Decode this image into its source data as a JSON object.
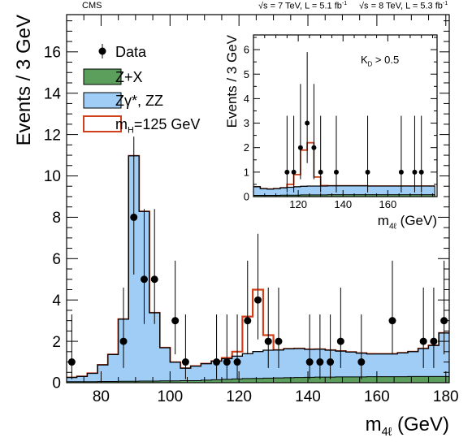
{
  "header": {
    "experiment": "CMS",
    "run1": {
      "energy": "√s = 7 TeV, L = 5.1 fb",
      "exp": "-1"
    },
    "run2": {
      "energy": "√s = 8 TeV, L = 5.3 fb",
      "exp": "-1"
    }
  },
  "colors": {
    "zx_fill": "#5c9e5c",
    "zz_fill": "#9fcdf5",
    "higgs_line": "#d0401b",
    "data": "#000000"
  },
  "chart_data": [
    {
      "type": "bar",
      "histogram": "stacked-step",
      "xlabel_main": "m",
      "xlabel_sub": "4ℓ",
      "xlabel_unit": " (GeV)",
      "ylabel": "Events / 3 GeV",
      "xlim": [
        70,
        181
      ],
      "ylim": [
        0,
        17.8
      ],
      "xticks": [
        80,
        100,
        120,
        140,
        160,
        180
      ],
      "yticks": [
        0,
        2,
        4,
        6,
        8,
        10,
        12,
        14,
        16
      ],
      "bin_edges": [
        70,
        73,
        76,
        79,
        82,
        85,
        88,
        91,
        94,
        97,
        100,
        103,
        106,
        109,
        112,
        115,
        118,
        121,
        124,
        127,
        130,
        133,
        136,
        139,
        142,
        145,
        148,
        151,
        154,
        157,
        160,
        163,
        166,
        169,
        172,
        175,
        178,
        181
      ],
      "series": [
        {
          "name": "Z+X",
          "kind": "fill",
          "values": [
            0.05,
            0.05,
            0.05,
            0.06,
            0.06,
            0.07,
            0.07,
            0.08,
            0.08,
            0.09,
            0.09,
            0.1,
            0.1,
            0.12,
            0.14,
            0.16,
            0.18,
            0.2,
            0.21,
            0.22,
            0.23,
            0.24,
            0.25,
            0.26,
            0.27,
            0.27,
            0.28,
            0.28,
            0.28,
            0.29,
            0.29,
            0.29,
            0.29,
            0.3,
            0.3,
            0.3,
            0.3
          ]
        },
        {
          "name": "Zγ*, ZZ",
          "kind": "fill",
          "values": [
            0.2,
            0.25,
            0.4,
            0.8,
            1.3,
            3.0,
            10.9,
            8.2,
            3.3,
            1.6,
            0.9,
            0.6,
            0.7,
            0.8,
            0.9,
            1.0,
            1.1,
            1.2,
            1.3,
            1.35,
            1.35,
            1.4,
            1.4,
            1.35,
            1.35,
            1.3,
            1.25,
            1.2,
            1.15,
            1.1,
            1.1,
            1.1,
            1.15,
            1.2,
            1.35,
            1.5,
            2.1
          ]
        },
        {
          "name": "mH=125 GeV",
          "kind": "line",
          "label_main": "m",
          "label_sub": "H",
          "label_rest": "=125 GeV",
          "values": [
            0.25,
            0.3,
            0.45,
            0.86,
            1.36,
            3.07,
            10.97,
            8.28,
            3.38,
            1.69,
            0.99,
            0.7,
            0.8,
            0.92,
            1.04,
            1.16,
            1.28,
            1.4,
            1.51,
            1.57,
            1.58,
            1.64,
            1.65,
            1.61,
            1.62,
            1.57,
            1.53,
            1.48,
            1.43,
            1.39,
            1.39,
            1.39,
            1.44,
            1.5,
            1.65,
            1.8,
            2.4
          ],
          "overrides": {
            "115": 1.2,
            "118": 1.5,
            "121": 3.2,
            "124": 4.5,
            "127": 2.3
          }
        },
        {
          "name": "Data",
          "kind": "points",
          "x": [
            71.5,
            86.5,
            89.5,
            92.5,
            95.5,
            101.5,
            104.5,
            113.5,
            116.5,
            119.5,
            122.5,
            125.5,
            128.5,
            131.5,
            140.5,
            143.5,
            146.5,
            149.5,
            155.5,
            164.5,
            173.5,
            176.5,
            179.5
          ],
          "y": [
            1,
            2,
            8,
            5,
            5,
            3,
            1,
            1,
            1,
            1,
            3,
            4,
            2,
            2,
            1,
            1,
            1,
            2,
            1,
            3,
            2,
            2,
            3
          ],
          "yerr_up": [
            2.3,
            2.6,
            3.9,
            3.4,
            3.4,
            2.9,
            2.3,
            2.3,
            2.3,
            2.3,
            2.9,
            3.2,
            2.6,
            2.6,
            2.3,
            2.3,
            2.3,
            2.6,
            2.3,
            2.9,
            2.6,
            2.6,
            2.9
          ],
          "yerr_down": [
            0.83,
            1.29,
            2.77,
            2.16,
            2.16,
            1.63,
            0.83,
            0.83,
            0.83,
            0.83,
            1.63,
            1.91,
            1.29,
            1.29,
            0.83,
            0.83,
            0.83,
            1.29,
            0.83,
            1.63,
            1.29,
            1.29,
            1.63
          ]
        }
      ],
      "legend": "top-left"
    },
    {
      "type": "bar",
      "histogram": "stacked-step",
      "annotation": "K",
      "annotation_sub": "D",
      "annotation_rest": " > 0.5",
      "xlabel_main": "m",
      "xlabel_sub": "4ℓ",
      "xlabel_unit": " (GeV)",
      "ylabel": "Events / 3 GeV",
      "xlim": [
        100,
        182
      ],
      "ylim": [
        0,
        6.6
      ],
      "xticks": [
        120,
        140,
        160
      ],
      "yticks": [
        0,
        1,
        2,
        3,
        4,
        5,
        6
      ],
      "bin_edges": [
        100,
        103,
        106,
        109,
        112,
        115,
        118,
        121,
        124,
        127,
        130,
        133,
        136,
        139,
        142,
        145,
        148,
        151,
        154,
        157,
        160,
        163,
        166,
        169,
        172,
        175,
        178,
        181
      ],
      "series": [
        {
          "name": "Z+X",
          "kind": "fill",
          "values": [
            0.05,
            0.05,
            0.05,
            0.05,
            0.06,
            0.06,
            0.06,
            0.07,
            0.07,
            0.07,
            0.07,
            0.08,
            0.08,
            0.08,
            0.08,
            0.08,
            0.08,
            0.08,
            0.08,
            0.08,
            0.08,
            0.08,
            0.08,
            0.08,
            0.08,
            0.08,
            0.08
          ]
        },
        {
          "name": "Zγ*, ZZ",
          "kind": "fill",
          "values": [
            0.35,
            0.28,
            0.26,
            0.28,
            0.3,
            0.32,
            0.34,
            0.35,
            0.36,
            0.36,
            0.36,
            0.36,
            0.36,
            0.36,
            0.36,
            0.36,
            0.36,
            0.35,
            0.35,
            0.35,
            0.35,
            0.35,
            0.35,
            0.35,
            0.35,
            0.35,
            0.35
          ]
        },
        {
          "name": "mH=125 GeV",
          "kind": "line",
          "overrides": {
            "115": 0.5,
            "118": 0.9,
            "121": 1.9,
            "124": 2.2,
            "127": 0.8,
            "130": 0.45
          }
        },
        {
          "name": "Data",
          "kind": "points",
          "x": [
            115,
            118,
            121,
            124,
            127,
            130,
            137,
            151,
            166,
            172,
            175
          ],
          "y": [
            1,
            1,
            2,
            3,
            2,
            1,
            1,
            1,
            1,
            1,
            1
          ],
          "yerr_up": [
            2.3,
            2.3,
            2.6,
            2.9,
            2.6,
            2.3,
            2.3,
            2.3,
            2.3,
            2.3,
            2.3
          ],
          "yerr_down": [
            0.83,
            0.83,
            1.29,
            1.63,
            1.29,
            0.83,
            0.83,
            0.83,
            0.83,
            0.83,
            0.83
          ]
        }
      ],
      "legend": "none"
    }
  ]
}
